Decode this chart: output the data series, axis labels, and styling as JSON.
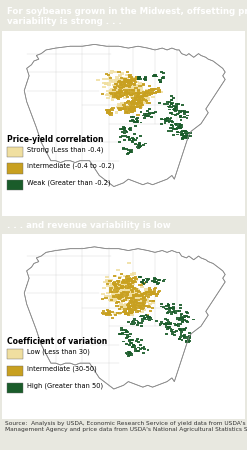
{
  "title1": "For soybeans grown in the Midwest, offsetting price-yield\nvariability is strong . . .",
  "title2": ". . . and revenue variability is low",
  "header_bg": "#2d6b35",
  "header_text_color": "#ffffff",
  "map_bg": "#ffffff",
  "outer_bg": "#e8e8e0",
  "legend1_title": "Price-yield correlation",
  "legend1_items": [
    {
      "label": "Strong (Less than -0.4)",
      "color": "#f0dfa0"
    },
    {
      "label": "Intermediate (-0.4 to -0.2)",
      "color": "#c8a020"
    },
    {
      "label": "Weak (Greater than -0.2)",
      "color": "#1a5c2a"
    }
  ],
  "legend2_title": "Coefficient of variation",
  "legend2_items": [
    {
      "label": "Low (Less than 30)",
      "color": "#f0dfa0"
    },
    {
      "label": "Intermediate (30-50)",
      "color": "#c8a020"
    },
    {
      "label": "High (Greater than 50)",
      "color": "#1a5c2a"
    }
  ],
  "source_text": "Source:  Analysis by USDA, Economic Research Service of yield data from USDA's Risk\nManagement Agency and price data from USDA's National Agricultural Statistics Service.",
  "source_fontsize": 4.2,
  "header_fontsize": 6.2,
  "legend_title_fontsize": 5.5,
  "legend_item_fontsize": 4.8
}
